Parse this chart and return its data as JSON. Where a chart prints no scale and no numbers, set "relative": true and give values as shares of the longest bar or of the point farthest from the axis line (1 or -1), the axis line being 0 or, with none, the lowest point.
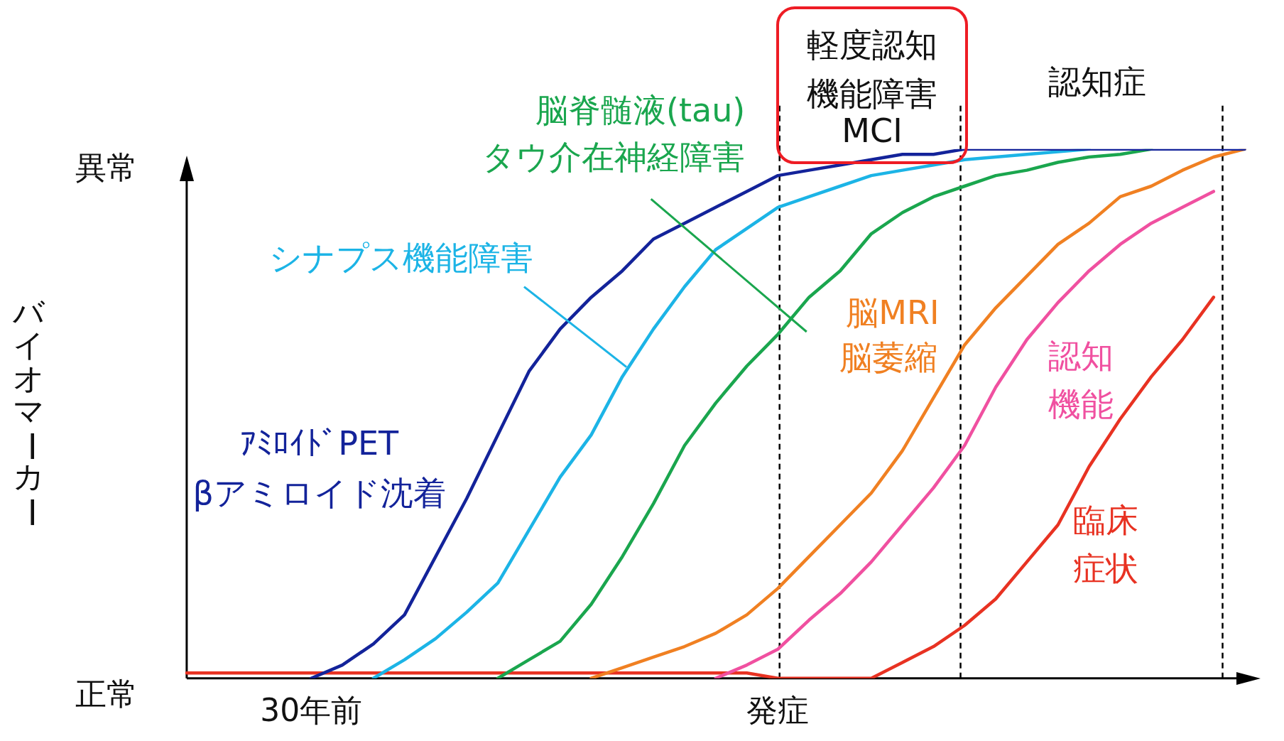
{
  "chart_data": {
    "type": "line",
    "ylabel": "バイオマーカー",
    "categories": [
      null,
      null,
      null,
      null,
      "30年前",
      null,
      null,
      null,
      null,
      null,
      null,
      null,
      null,
      null,
      null,
      null,
      null,
      null,
      null,
      "発症",
      null,
      null,
      null,
      null,
      null,
      null,
      null,
      null,
      null,
      null,
      null,
      null,
      null,
      null,
      null
    ],
    "relative": true,
    "legend": false,
    "marker": "none",
    "line_style": "solid",
    "series": [
      {
        "name": "ｱﾐﾛｲﾄﾞPET\nβアミロイド沈着",
        "color": "#13239a",
        "values": [
          null,
          null,
          null,
          null,
          0,
          0.025,
          0.065,
          0.12,
          0.23,
          0.34,
          0.46,
          0.58,
          0.66,
          0.72,
          0.77,
          0.83,
          0.86,
          0.89,
          0.92,
          0.95,
          0.96,
          0.97,
          0.98,
          0.99,
          0.99,
          1,
          1,
          1,
          1,
          1,
          1,
          1,
          1,
          1,
          1
        ]
      },
      {
        "name": "シナプス機能障害",
        "color": "#1cb4e6",
        "values": [
          null,
          null,
          null,
          null,
          null,
          null,
          0,
          0.035,
          0.075,
          0.125,
          0.18,
          0.28,
          0.38,
          0.46,
          0.57,
          0.66,
          0.74,
          0.81,
          0.85,
          0.89,
          0.91,
          0.93,
          0.95,
          0.96,
          0.97,
          0.98,
          0.985,
          0.99,
          0.995,
          1,
          null,
          null,
          null,
          null,
          null
        ]
      },
      {
        "name": "脳脊髄液(tau)\nタウ介在神経障害",
        "color": "#1aa64e",
        "values": [
          null,
          null,
          null,
          null,
          null,
          null,
          null,
          null,
          null,
          null,
          0,
          0.035,
          0.07,
          0.14,
          0.23,
          0.33,
          0.44,
          0.52,
          0.59,
          0.65,
          0.72,
          0.77,
          0.84,
          0.88,
          0.91,
          0.93,
          0.95,
          0.96,
          0.975,
          0.985,
          0.99,
          1,
          null,
          null,
          null
        ]
      },
      {
        "name": "脳MRI\n脳萎縮",
        "color": "#f08022",
        "values": [
          null,
          null,
          null,
          null,
          null,
          null,
          null,
          null,
          null,
          null,
          null,
          null,
          null,
          0,
          0.02,
          0.04,
          0.06,
          0.085,
          0.12,
          0.17,
          0.23,
          0.29,
          0.35,
          0.43,
          0.53,
          0.63,
          0.7,
          0.76,
          0.82,
          0.86,
          0.91,
          0.93,
          0.96,
          0.985,
          1
        ]
      },
      {
        "name": "認知機能",
        "color": "#f050a0",
        "values": [
          null,
          null,
          null,
          null,
          null,
          null,
          null,
          null,
          null,
          null,
          null,
          null,
          null,
          null,
          null,
          null,
          null,
          0,
          0.025,
          0.055,
          0.11,
          0.16,
          0.22,
          0.29,
          0.36,
          0.44,
          0.55,
          0.64,
          0.71,
          0.77,
          0.82,
          0.86,
          0.89,
          0.92,
          null
        ]
      },
      {
        "name": "臨床症状",
        "color": "#e83222",
        "values": [
          0.01,
          0.01,
          0.01,
          0.01,
          0.01,
          0.01,
          0.01,
          0.01,
          0.01,
          0.01,
          0.01,
          0.01,
          0.01,
          0.01,
          0.01,
          0.01,
          0.01,
          0.01,
          0.01,
          0,
          0,
          0,
          0,
          0.03,
          0.06,
          0.1,
          0.15,
          0.22,
          0.29,
          0.4,
          0.49,
          0.57,
          0.64,
          0.72,
          null
        ]
      }
    ],
    "annotations": [
      "軽度認知機能障害MCI",
      "認知症",
      "正常",
      "異常"
    ]
  }
}
